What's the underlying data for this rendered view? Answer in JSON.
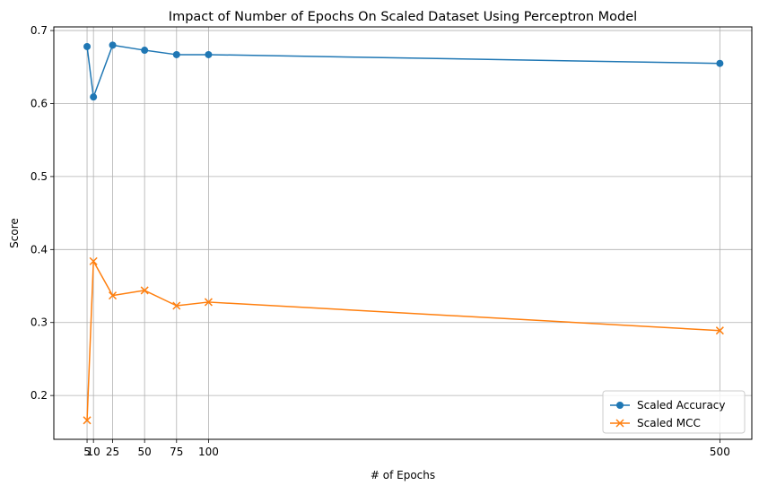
{
  "chart_data": {
    "type": "line",
    "title": "Impact of Number of Epochs On Scaled Dataset Using Perceptron Model",
    "xlabel": "# of Epochs",
    "ylabel": "Score",
    "x": [
      5,
      10,
      25,
      50,
      75,
      100,
      500
    ],
    "x_tick_labels": [
      "5",
      "10",
      "25",
      "50",
      "75",
      "100",
      "500"
    ],
    "y_ticks": [
      0.2,
      0.3,
      0.4,
      0.5,
      0.6,
      0.7
    ],
    "y_tick_labels": [
      "0.2",
      "0.3",
      "0.4",
      "0.5",
      "0.6",
      "0.7"
    ],
    "xlim": [
      -21,
      525
    ],
    "ylim": [
      0.14,
      0.705
    ],
    "grid": true,
    "legend_position": "lower-right",
    "series": [
      {
        "name": "Scaled Accuracy",
        "values": [
          0.678,
          0.609,
          0.68,
          0.673,
          0.667,
          0.667,
          0.655
        ],
        "color": "#1f77b4",
        "marker": "circle"
      },
      {
        "name": "Scaled MCC",
        "values": [
          0.166,
          0.384,
          0.337,
          0.344,
          0.323,
          0.328,
          0.289
        ],
        "color": "#ff7f0e",
        "marker": "x"
      }
    ]
  }
}
